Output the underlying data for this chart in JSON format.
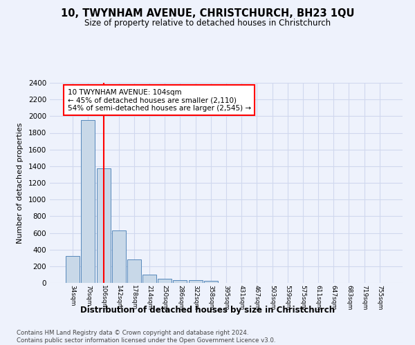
{
  "title": "10, TWYNHAM AVENUE, CHRISTCHURCH, BH23 1QU",
  "subtitle": "Size of property relative to detached houses in Christchurch",
  "xlabel": "Distribution of detached houses by size in Christchurch",
  "ylabel": "Number of detached properties",
  "footer_line1": "Contains HM Land Registry data © Crown copyright and database right 2024.",
  "footer_line2": "Contains public sector information licensed under the Open Government Licence v3.0.",
  "categories": [
    "34sqm",
    "70sqm",
    "106sqm",
    "142sqm",
    "178sqm",
    "214sqm",
    "250sqm",
    "286sqm",
    "322sqm",
    "358sqm",
    "395sqm",
    "431sqm",
    "467sqm",
    "503sqm",
    "539sqm",
    "575sqm",
    "611sqm",
    "647sqm",
    "683sqm",
    "719sqm",
    "755sqm"
  ],
  "values": [
    320,
    1950,
    1370,
    630,
    285,
    97,
    50,
    35,
    30,
    22,
    0,
    0,
    0,
    0,
    0,
    0,
    0,
    0,
    0,
    0,
    0
  ],
  "bar_color": "#c8d8e8",
  "bar_edge_color": "#5588bb",
  "vline_x_index": 2,
  "vline_color": "red",
  "annotation_title": "10 TWYNHAM AVENUE: 104sqm",
  "annotation_line1": "← 45% of detached houses are smaller (2,110)",
  "annotation_line2": "54% of semi-detached houses are larger (2,545) →",
  "annotation_box_color": "white",
  "annotation_box_edge_color": "red",
  "ylim": [
    0,
    2400
  ],
  "yticks": [
    0,
    200,
    400,
    600,
    800,
    1000,
    1200,
    1400,
    1600,
    1800,
    2000,
    2200,
    2400
  ],
  "grid_color": "#d0d8ee",
  "background_color": "#eef2fc"
}
